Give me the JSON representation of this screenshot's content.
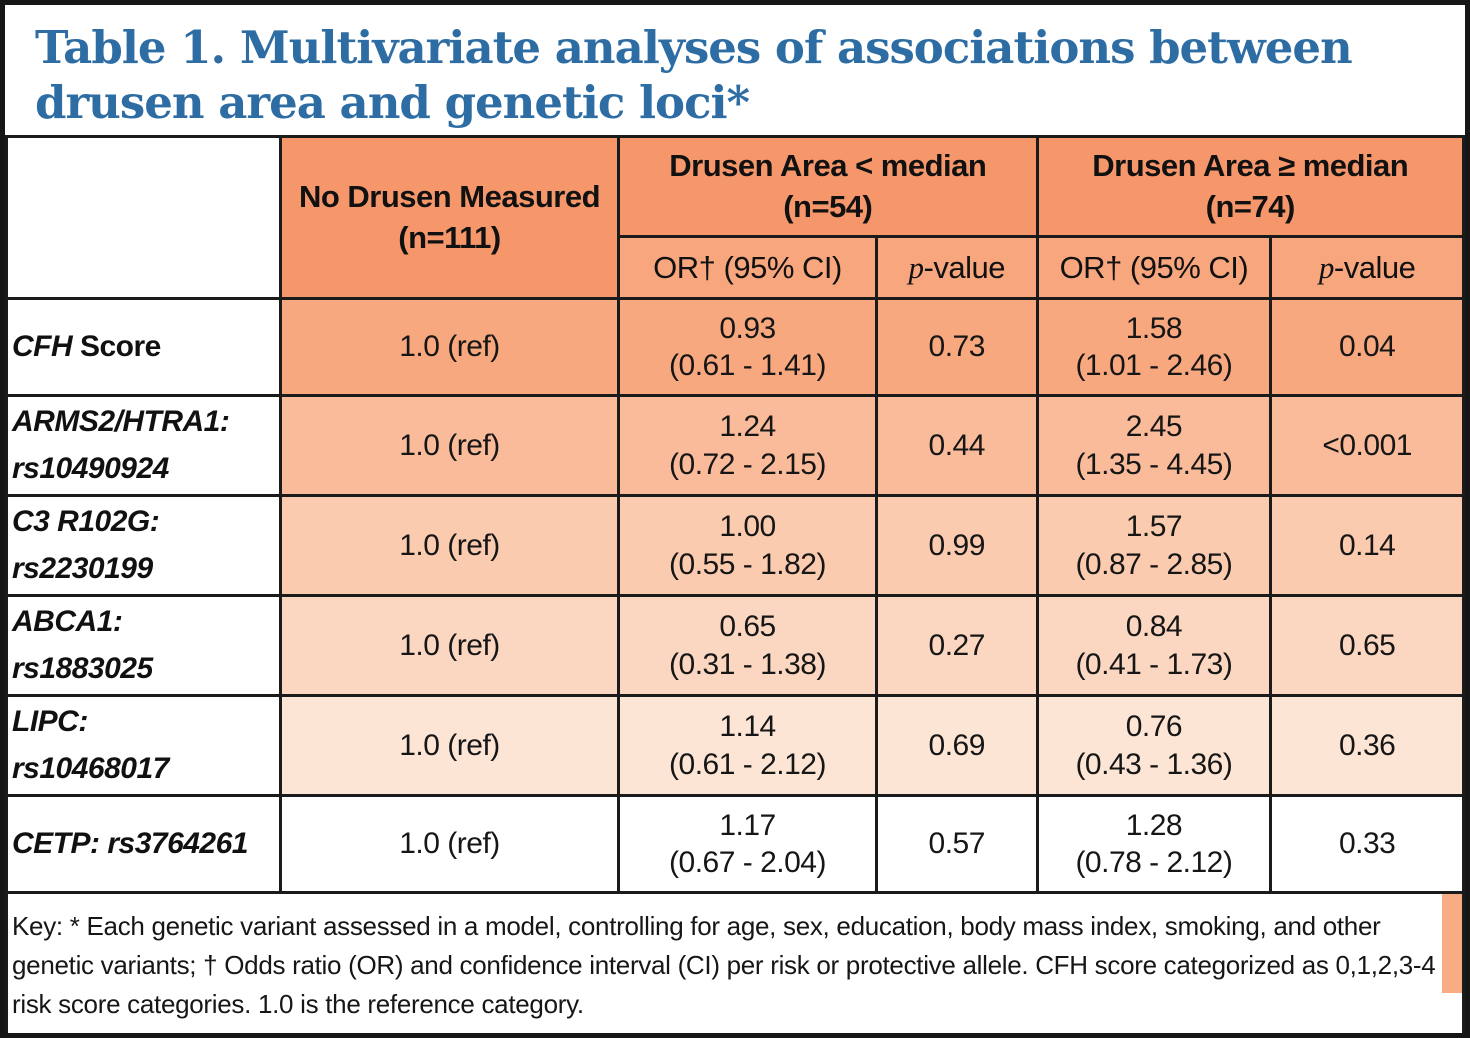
{
  "title": {
    "line1": "Table 1. Multivariate analyses of associations between",
    "line2": "drusen area and genetic loci*"
  },
  "colors": {
    "title_blue": "#2E6DA3",
    "header_orange": "#F6976B",
    "subheader_orange": "#F7A67E",
    "accent_strip": "#F7AC84",
    "grid_line": "#1b1b1b",
    "row_backgrounds": [
      "#F7A87F",
      "#F9BB9A",
      "#FACBAF",
      "#FBD7C1",
      "#FCE5D5",
      "#FFFFFF"
    ]
  },
  "table": {
    "headers": {
      "corner": "",
      "no_drusen_line1": "No Drusen Measured",
      "no_drusen_line2": "(n=111)",
      "lt_median_line1": "Drusen Area < median",
      "lt_median_line2": "(n=54)",
      "ge_median_line1": "Drusen Area ≥ median",
      "ge_median_line2": "(n=74)",
      "or_label": "OR† (95% CI)",
      "p_italic": "p",
      "p_suffix": "-value"
    },
    "rows": [
      {
        "gene": "CFH",
        "suffix": " Score",
        "gene2": "",
        "ref": "1.0 (ref)",
        "or1": "0.93",
        "ci1": "(0.61 - 1.41)",
        "p1": "0.73",
        "or2": "1.58",
        "ci2": "(1.01 - 2.46)",
        "p2": "0.04",
        "bg": "#F7A87F"
      },
      {
        "gene": "ARMS2/HTRA1:",
        "suffix": "",
        "gene2": "rs10490924",
        "ref": "1.0 (ref)",
        "or1": "1.24",
        "ci1": "(0.72 - 2.15)",
        "p1": "0.44",
        "or2": "2.45",
        "ci2": "(1.35 - 4.45)",
        "p2": "<0.001",
        "bg": "#F9BB9A"
      },
      {
        "gene": "C3 R102G:",
        "suffix": "",
        "gene2": "rs2230199",
        "ref": "1.0 (ref)",
        "or1": "1.00",
        "ci1": "(0.55 - 1.82)",
        "p1": "0.99",
        "or2": "1.57",
        "ci2": "(0.87 - 2.85)",
        "p2": "0.14",
        "bg": "#FACBAF"
      },
      {
        "gene": "ABCA1:",
        "suffix": "",
        "gene2": "rs1883025",
        "ref": "1.0 (ref)",
        "or1": "0.65",
        "ci1": "(0.31 - 1.38)",
        "p1": "0.27",
        "or2": "0.84",
        "ci2": "(0.41 - 1.73)",
        "p2": "0.65",
        "bg": "#FBD7C1"
      },
      {
        "gene": "LIPC:",
        "suffix": "",
        "gene2": "rs10468017",
        "ref": "1.0 (ref)",
        "or1": "1.14",
        "ci1": "(0.61 - 2.12)",
        "p1": "0.69",
        "or2": "0.76",
        "ci2": "(0.43 - 1.36)",
        "p2": "0.36",
        "bg": "#FCE5D5"
      },
      {
        "gene": "CETP: rs3764261",
        "suffix": "",
        "gene2": "",
        "ref": "1.0 (ref)",
        "or1": "1.17",
        "ci1": "(0.67 - 2.04)",
        "p1": "0.57",
        "or2": "1.28",
        "ci2": "(0.78 - 2.12)",
        "p2": "0.33",
        "bg": "#FFFFFF"
      }
    ],
    "footer": {
      "text": "Key: * Each genetic variant assessed in a model, controlling for age, sex, education, body mass index, smoking, and other genetic variants; † Odds ratio (OR) and confidence interval (CI) per risk or protective allele. CFH score categorized as 0,1,2,3-4 risk score categories. 1.0 is the reference category."
    }
  }
}
